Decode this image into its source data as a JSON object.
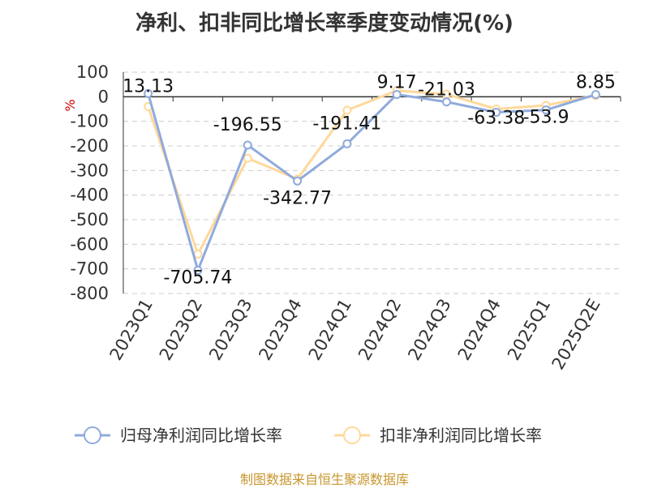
{
  "title": "净利、扣非同比增长率季度变动情况(%)",
  "source": "制图数据来自恒生聚源数据库",
  "chart_data": {
    "type": "line",
    "ylabel": "%",
    "ylim": [
      -800,
      100
    ],
    "yticks": [
      100,
      0,
      -100,
      -200,
      -300,
      -400,
      -500,
      -600,
      -700,
      -800
    ],
    "grid": true,
    "legend_position": "bottom",
    "categories": [
      "2023Q1",
      "2023Q2",
      "2023Q3",
      "2023Q4",
      "2024Q1",
      "2024Q2",
      "2024Q3",
      "2024Q4",
      "2025Q1",
      "2025Q2E"
    ],
    "series": [
      {
        "name": "归母净利润同比增长率",
        "color": "#8faadc",
        "values": [
          13.13,
          -705.74,
          -196.55,
          -342.77,
          -191.41,
          9.17,
          -21.03,
          -63.38,
          -53.9,
          8.85
        ],
        "labels": [
          "13.13",
          "-705.74",
          "-196.55",
          "-342.77",
          "-191.41",
          "9.17",
          "-21.03",
          "-63.38",
          "-53.9",
          "8.85"
        ]
      },
      {
        "name": "扣非净利润同比增长率",
        "color": "#ffd89a",
        "values": [
          -40,
          -640,
          -250,
          -335,
          -55,
          25,
          10,
          -50,
          -35,
          5
        ]
      }
    ]
  }
}
